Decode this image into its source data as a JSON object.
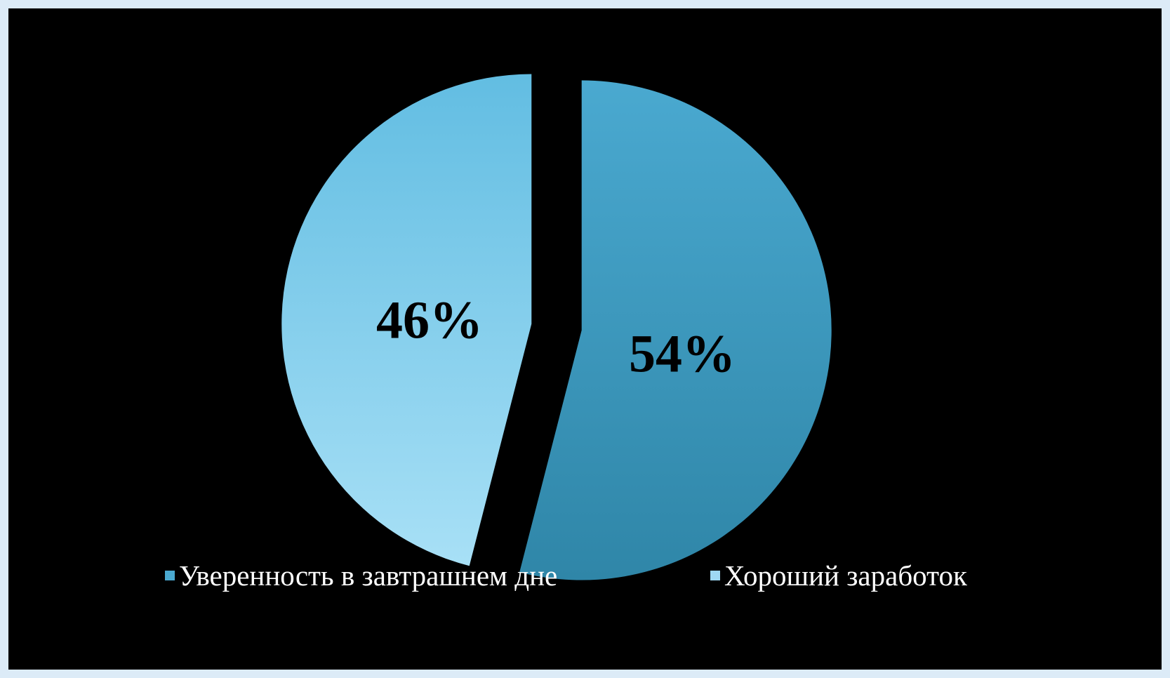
{
  "chart_data": {
    "type": "pie",
    "title": "",
    "slices": [
      {
        "name": "Уверенность в завтрашнем дне",
        "value": 54,
        "label": "54%",
        "color": "#4aa9d0",
        "color_dark": "#2f86a8"
      },
      {
        "name": "Хороший заработок",
        "value": 46,
        "label": "46%",
        "color": "#9fd8f3",
        "color_dark": "#62bde2"
      }
    ],
    "start_angle_deg": 0,
    "exploded": true,
    "legend_position": "bottom",
    "background": "#000000",
    "frame_color": "#dcebf7"
  }
}
